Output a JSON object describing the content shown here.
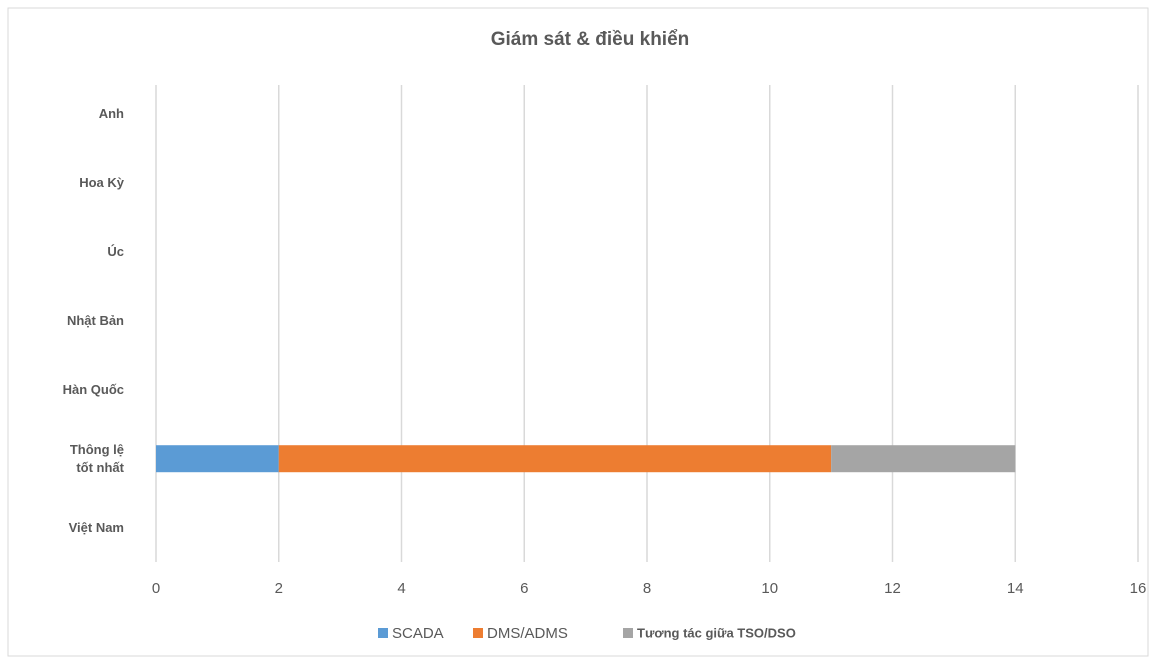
{
  "chart_data": {
    "type": "stacked_barh",
    "title": "Giám sát & điều khiển",
    "categories": [
      "Anh",
      "Hoa Kỳ",
      "Úc",
      "Nhật Bản",
      "Hàn Quốc",
      "Thông lệ tốt nhất",
      "Việt Nam"
    ],
    "series": [
      {
        "name": "SCADA",
        "color": "#5b9bd5",
        "values": [
          0,
          0,
          0,
          0,
          0,
          2,
          0
        ]
      },
      {
        "name": "DMS/ADMS",
        "color": "#ed7d31",
        "values": [
          0,
          0,
          0,
          0,
          0,
          9,
          0
        ]
      },
      {
        "name": "Tương tác giữa TSO/DSO",
        "color": "#a5a5a5",
        "values": [
          0,
          0,
          0,
          0,
          0,
          3,
          0
        ]
      }
    ],
    "xlim": [
      0,
      16
    ],
    "xticks": [
      0,
      2,
      4,
      6,
      8,
      10,
      12,
      14,
      16
    ],
    "grid": true,
    "legend": "bottom"
  }
}
